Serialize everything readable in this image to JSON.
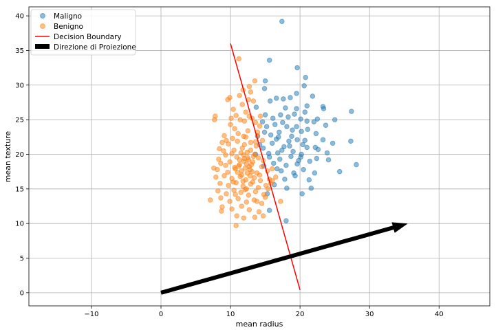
{
  "chart_data": {
    "type": "scatter",
    "title": "",
    "xlabel": "mean radius",
    "ylabel": "mean texture",
    "xlim": [
      -19,
      47.3
    ],
    "ylim": [
      -1.9,
      41.3
    ],
    "xticks": [
      -10,
      0,
      10,
      20,
      30,
      40
    ],
    "xtick_labels": [
      "−10",
      "0",
      "10",
      "20",
      "30",
      "40"
    ],
    "yticks": [
      0,
      5,
      10,
      15,
      20,
      25,
      30,
      35,
      40
    ],
    "ytick_labels": [
      "0",
      "5",
      "10",
      "15",
      "20",
      "25",
      "30",
      "35",
      "40"
    ],
    "grid": true,
    "legend_position": "upper-left",
    "colors": {
      "maligno": "#1f77b4",
      "benigno": "#ff7f0e",
      "boundary": "#ff0000",
      "arrow": "#000000"
    },
    "series": [
      {
        "name": "Maligno",
        "kind": "scatter",
        "points": [
          [
            17.4,
            39.2
          ],
          [
            15.6,
            33.6
          ],
          [
            19.6,
            32.5
          ],
          [
            20.8,
            31.1
          ],
          [
            15.0,
            30.6
          ],
          [
            20.6,
            29.9
          ],
          [
            19.5,
            28.8
          ],
          [
            14.9,
            29.5
          ],
          [
            16.6,
            28.1
          ],
          [
            17.6,
            28.0
          ],
          [
            18.6,
            28.2
          ],
          [
            21.8,
            28.4
          ],
          [
            23.3,
            26.9
          ],
          [
            23.4,
            26.6
          ],
          [
            27.4,
            26.2
          ],
          [
            19.5,
            26.6
          ],
          [
            20.7,
            26.1
          ],
          [
            17.2,
            25.7
          ],
          [
            15.0,
            25.7
          ],
          [
            18.3,
            25.4
          ],
          [
            16.1,
            25.2
          ],
          [
            25.0,
            25.0
          ],
          [
            20.1,
            25.1
          ],
          [
            14.6,
            24.7
          ],
          [
            21.0,
            24.8
          ],
          [
            22.0,
            24.7
          ],
          [
            17.5,
            24.6
          ],
          [
            19.5,
            24.0
          ],
          [
            23.7,
            24.2
          ],
          [
            15.2,
            24.0
          ],
          [
            16.4,
            24.3
          ],
          [
            18.1,
            24.0
          ],
          [
            21.1,
            23.6
          ],
          [
            20.2,
            23.3
          ],
          [
            22.3,
            23.0
          ],
          [
            17.0,
            23.2
          ],
          [
            18.8,
            22.6
          ],
          [
            15.8,
            22.8
          ],
          [
            16.6,
            22.2
          ],
          [
            19.6,
            22.1
          ],
          [
            20.7,
            22.0
          ],
          [
            23.3,
            22.1
          ],
          [
            24.7,
            21.6
          ],
          [
            22.2,
            21.0
          ],
          [
            21.0,
            21.0
          ],
          [
            18.5,
            21.2
          ],
          [
            16.0,
            21.6
          ],
          [
            17.4,
            20.6
          ],
          [
            14.7,
            20.9
          ],
          [
            15.5,
            20.1
          ],
          [
            19.0,
            20.4
          ],
          [
            20.2,
            20.0
          ],
          [
            23.9,
            20.2
          ],
          [
            27.3,
            21.9
          ],
          [
            15.6,
            19.6
          ],
          [
            17.1,
            19.3
          ],
          [
            19.8,
            19.1
          ],
          [
            21.4,
            19.0
          ],
          [
            22.4,
            19.4
          ],
          [
            16.2,
            18.7
          ],
          [
            18.0,
            18.4
          ],
          [
            20.5,
            17.8
          ],
          [
            16.7,
            17.9
          ],
          [
            25.7,
            17.5
          ],
          [
            28.1,
            18.5
          ],
          [
            22.1,
            17.3
          ],
          [
            19.3,
            16.9
          ],
          [
            17.8,
            16.4
          ],
          [
            20.3,
            14.3
          ],
          [
            21.6,
            15.1
          ],
          [
            18.1,
            15.1
          ],
          [
            15.3,
            14.3
          ],
          [
            15.6,
            11.9
          ],
          [
            18.0,
            10.4
          ],
          [
            13.9,
            22.6
          ],
          [
            14.2,
            21.4
          ],
          [
            13.6,
            20.0
          ],
          [
            14.8,
            18.3
          ],
          [
            13.7,
            26.8
          ],
          [
            15.7,
            27.7
          ],
          [
            17.9,
            26.7
          ],
          [
            21.0,
            27.0
          ],
          [
            19.2,
            25.8
          ],
          [
            22.5,
            25.1
          ],
          [
            16.9,
            22.5
          ],
          [
            18.4,
            21.9
          ],
          [
            20.4,
            21.4
          ],
          [
            22.6,
            20.7
          ],
          [
            24.1,
            19.2
          ],
          [
            19.6,
            18.6
          ],
          [
            17.3,
            17.6
          ],
          [
            21.3,
            16.3
          ],
          [
            16.3,
            15.6
          ],
          [
            18.9,
            23.5
          ],
          [
            20.1,
            19.6
          ],
          [
            16.8,
            20.2
          ],
          [
            18.7,
            19.7
          ],
          [
            17.7,
            21.1
          ],
          [
            19.1,
            17.3
          ],
          [
            14.9,
            23.2
          ]
        ]
      },
      {
        "name": "Benigno",
        "kind": "scatter",
        "points": [
          [
            11.2,
            33.8
          ],
          [
            13.5,
            30.6
          ],
          [
            12.7,
            29.8
          ],
          [
            11.8,
            29.3
          ],
          [
            12.9,
            29.0
          ],
          [
            11.3,
            28.5
          ],
          [
            9.9,
            28.2
          ],
          [
            9.6,
            27.9
          ],
          [
            12.6,
            27.9
          ],
          [
            13.3,
            27.7
          ],
          [
            11.7,
            27.2
          ],
          [
            10.4,
            26.5
          ],
          [
            10.8,
            25.6
          ],
          [
            7.8,
            25.5
          ],
          [
            7.7,
            25.0
          ],
          [
            12.2,
            26.1
          ],
          [
            13.1,
            25.2
          ],
          [
            11.4,
            25.0
          ],
          [
            14.2,
            24.1
          ],
          [
            10.0,
            24.3
          ],
          [
            12.0,
            24.8
          ],
          [
            10.6,
            23.7
          ],
          [
            12.5,
            23.4
          ],
          [
            13.9,
            23.2
          ],
          [
            11.1,
            23.0
          ],
          [
            9.1,
            22.7
          ],
          [
            10.3,
            22.3
          ],
          [
            12.2,
            22.5
          ],
          [
            14.6,
            22.0
          ],
          [
            8.8,
            21.7
          ],
          [
            9.7,
            21.5
          ],
          [
            11.0,
            21.9
          ],
          [
            12.9,
            21.7
          ],
          [
            13.7,
            21.2
          ],
          [
            8.4,
            20.8
          ],
          [
            10.5,
            20.6
          ],
          [
            11.7,
            20.9
          ],
          [
            12.4,
            20.3
          ],
          [
            13.5,
            20.0
          ],
          [
            9.3,
            19.9
          ],
          [
            10.9,
            19.6
          ],
          [
            11.9,
            19.9
          ],
          [
            12.6,
            19.2
          ],
          [
            14.0,
            19.5
          ],
          [
            8.6,
            18.7
          ],
          [
            9.9,
            18.9
          ],
          [
            11.3,
            18.5
          ],
          [
            12.3,
            18.6
          ],
          [
            13.2,
            18.9
          ],
          [
            14.5,
            18.2
          ],
          [
            8.1,
            17.8
          ],
          [
            9.6,
            17.4
          ],
          [
            10.7,
            17.9
          ],
          [
            11.6,
            17.6
          ],
          [
            12.8,
            17.8
          ],
          [
            13.8,
            17.3
          ],
          [
            15.3,
            17.6
          ],
          [
            7.9,
            16.7
          ],
          [
            9.1,
            16.9
          ],
          [
            10.2,
            16.5
          ],
          [
            11.4,
            16.8
          ],
          [
            12.2,
            16.3
          ],
          [
            13.4,
            16.6
          ],
          [
            14.3,
            16.2
          ],
          [
            15.6,
            16.4
          ],
          [
            8.5,
            15.8
          ],
          [
            9.7,
            15.5
          ],
          [
            10.8,
            15.9
          ],
          [
            11.8,
            15.4
          ],
          [
            12.9,
            15.7
          ],
          [
            14.0,
            15.2
          ],
          [
            15.1,
            15.5
          ],
          [
            8.2,
            14.7
          ],
          [
            9.4,
            14.3
          ],
          [
            10.5,
            14.8
          ],
          [
            11.5,
            14.5
          ],
          [
            12.6,
            14.1
          ],
          [
            13.6,
            14.6
          ],
          [
            14.8,
            14.2
          ],
          [
            7.1,
            13.4
          ],
          [
            8.6,
            13.7
          ],
          [
            9.9,
            13.2
          ],
          [
            11.1,
            13.6
          ],
          [
            12.3,
            13.1
          ],
          [
            13.4,
            13.4
          ],
          [
            14.5,
            12.9
          ],
          [
            8.8,
            12.4
          ],
          [
            10.2,
            12.1
          ],
          [
            11.6,
            12.5
          ],
          [
            12.7,
            12.0
          ],
          [
            14.1,
            11.7
          ],
          [
            8.7,
            11.8
          ],
          [
            10.9,
            11.1
          ],
          [
            11.9,
            10.8
          ],
          [
            13.5,
            10.9
          ],
          [
            14.7,
            11.1
          ],
          [
            10.8,
            9.7
          ],
          [
            15.4,
            15.0
          ],
          [
            15.8,
            15.8
          ],
          [
            16.0,
            16.2
          ],
          [
            12.0,
            19.4
          ],
          [
            11.9,
            19.0
          ],
          [
            12.1,
            18.0
          ],
          [
            12.4,
            17.3
          ],
          [
            11.6,
            17.0
          ],
          [
            12.8,
            16.9
          ],
          [
            11.2,
            18.3
          ],
          [
            12.7,
            18.2
          ],
          [
            13.1,
            17.5
          ],
          [
            11.3,
            19.2
          ],
          [
            12.5,
            19.5
          ],
          [
            13.0,
            18.5
          ],
          [
            11.0,
            17.4
          ],
          [
            12.9,
            20.6
          ],
          [
            11.5,
            20.2
          ],
          [
            13.3,
            19.7
          ],
          [
            10.6,
            18.1
          ],
          [
            11.8,
            16.1
          ],
          [
            12.3,
            15.0
          ],
          [
            13.2,
            16.0
          ],
          [
            10.4,
            16.0
          ],
          [
            12.0,
            21.4
          ],
          [
            13.6,
            21.8
          ],
          [
            11.9,
            22.6
          ],
          [
            10.2,
            20.1
          ],
          [
            9.3,
            18.4
          ],
          [
            9.0,
            20.5
          ],
          [
            14.2,
            17.0
          ],
          [
            14.7,
            19.1
          ],
          [
            13.9,
            22.7
          ],
          [
            10.7,
            14.2
          ],
          [
            12.1,
            14.9
          ],
          [
            13.8,
            13.2
          ],
          [
            15.0,
            13.8
          ],
          [
            16.5,
            16.7
          ],
          [
            16.0,
            17.9
          ],
          [
            17.2,
            13.2
          ],
          [
            9.4,
            22.0
          ],
          [
            8.3,
            19.3
          ],
          [
            7.6,
            18.0
          ],
          [
            10.1,
            25.2
          ],
          [
            12.7,
            25.5
          ],
          [
            13.6,
            24.6
          ],
          [
            14.3,
            25.5
          ]
        ]
      },
      {
        "name": "Decision Boundary",
        "kind": "line",
        "points": [
          [
            10.0,
            36.0
          ],
          [
            20.0,
            0.4
          ]
        ]
      },
      {
        "name": "Direzione di Proiezione",
        "kind": "arrow",
        "points": [
          [
            0.0,
            0.0
          ],
          [
            35.5,
            10.0
          ]
        ]
      }
    ],
    "legend": [
      "Maligno",
      "Benigno",
      "Decision Boundary",
      "Direzione di Proiezione"
    ]
  }
}
